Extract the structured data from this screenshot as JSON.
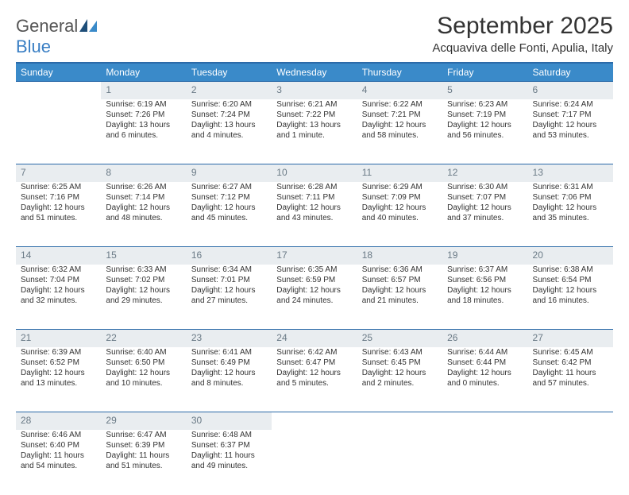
{
  "logo": {
    "part1": "General",
    "part2": "Blue"
  },
  "title": "September 2025",
  "location": "Acquaviva delle Fonti, Apulia, Italy",
  "colors": {
    "header_bg": "#3a8ac9",
    "header_text": "#ffffff",
    "daynum_bg": "#e9edf0",
    "daynum_text": "#6a7a86",
    "rule": "#2b6aa8",
    "logo_accent": "#3a7fc4",
    "body_text": "#333333"
  },
  "day_headers": [
    "Sunday",
    "Monday",
    "Tuesday",
    "Wednesday",
    "Thursday",
    "Friday",
    "Saturday"
  ],
  "weeks": [
    {
      "nums": [
        "",
        "1",
        "2",
        "3",
        "4",
        "5",
        "6"
      ],
      "cells": [
        null,
        {
          "sunrise": "Sunrise: 6:19 AM",
          "sunset": "Sunset: 7:26 PM",
          "daylight": "Daylight: 13 hours and 6 minutes."
        },
        {
          "sunrise": "Sunrise: 6:20 AM",
          "sunset": "Sunset: 7:24 PM",
          "daylight": "Daylight: 13 hours and 4 minutes."
        },
        {
          "sunrise": "Sunrise: 6:21 AM",
          "sunset": "Sunset: 7:22 PM",
          "daylight": "Daylight: 13 hours and 1 minute."
        },
        {
          "sunrise": "Sunrise: 6:22 AM",
          "sunset": "Sunset: 7:21 PM",
          "daylight": "Daylight: 12 hours and 58 minutes."
        },
        {
          "sunrise": "Sunrise: 6:23 AM",
          "sunset": "Sunset: 7:19 PM",
          "daylight": "Daylight: 12 hours and 56 minutes."
        },
        {
          "sunrise": "Sunrise: 6:24 AM",
          "sunset": "Sunset: 7:17 PM",
          "daylight": "Daylight: 12 hours and 53 minutes."
        }
      ]
    },
    {
      "nums": [
        "7",
        "8",
        "9",
        "10",
        "11",
        "12",
        "13"
      ],
      "cells": [
        {
          "sunrise": "Sunrise: 6:25 AM",
          "sunset": "Sunset: 7:16 PM",
          "daylight": "Daylight: 12 hours and 51 minutes."
        },
        {
          "sunrise": "Sunrise: 6:26 AM",
          "sunset": "Sunset: 7:14 PM",
          "daylight": "Daylight: 12 hours and 48 minutes."
        },
        {
          "sunrise": "Sunrise: 6:27 AM",
          "sunset": "Sunset: 7:12 PM",
          "daylight": "Daylight: 12 hours and 45 minutes."
        },
        {
          "sunrise": "Sunrise: 6:28 AM",
          "sunset": "Sunset: 7:11 PM",
          "daylight": "Daylight: 12 hours and 43 minutes."
        },
        {
          "sunrise": "Sunrise: 6:29 AM",
          "sunset": "Sunset: 7:09 PM",
          "daylight": "Daylight: 12 hours and 40 minutes."
        },
        {
          "sunrise": "Sunrise: 6:30 AM",
          "sunset": "Sunset: 7:07 PM",
          "daylight": "Daylight: 12 hours and 37 minutes."
        },
        {
          "sunrise": "Sunrise: 6:31 AM",
          "sunset": "Sunset: 7:06 PM",
          "daylight": "Daylight: 12 hours and 35 minutes."
        }
      ]
    },
    {
      "nums": [
        "14",
        "15",
        "16",
        "17",
        "18",
        "19",
        "20"
      ],
      "cells": [
        {
          "sunrise": "Sunrise: 6:32 AM",
          "sunset": "Sunset: 7:04 PM",
          "daylight": "Daylight: 12 hours and 32 minutes."
        },
        {
          "sunrise": "Sunrise: 6:33 AM",
          "sunset": "Sunset: 7:02 PM",
          "daylight": "Daylight: 12 hours and 29 minutes."
        },
        {
          "sunrise": "Sunrise: 6:34 AM",
          "sunset": "Sunset: 7:01 PM",
          "daylight": "Daylight: 12 hours and 27 minutes."
        },
        {
          "sunrise": "Sunrise: 6:35 AM",
          "sunset": "Sunset: 6:59 PM",
          "daylight": "Daylight: 12 hours and 24 minutes."
        },
        {
          "sunrise": "Sunrise: 6:36 AM",
          "sunset": "Sunset: 6:57 PM",
          "daylight": "Daylight: 12 hours and 21 minutes."
        },
        {
          "sunrise": "Sunrise: 6:37 AM",
          "sunset": "Sunset: 6:56 PM",
          "daylight": "Daylight: 12 hours and 18 minutes."
        },
        {
          "sunrise": "Sunrise: 6:38 AM",
          "sunset": "Sunset: 6:54 PM",
          "daylight": "Daylight: 12 hours and 16 minutes."
        }
      ]
    },
    {
      "nums": [
        "21",
        "22",
        "23",
        "24",
        "25",
        "26",
        "27"
      ],
      "cells": [
        {
          "sunrise": "Sunrise: 6:39 AM",
          "sunset": "Sunset: 6:52 PM",
          "daylight": "Daylight: 12 hours and 13 minutes."
        },
        {
          "sunrise": "Sunrise: 6:40 AM",
          "sunset": "Sunset: 6:50 PM",
          "daylight": "Daylight: 12 hours and 10 minutes."
        },
        {
          "sunrise": "Sunrise: 6:41 AM",
          "sunset": "Sunset: 6:49 PM",
          "daylight": "Daylight: 12 hours and 8 minutes."
        },
        {
          "sunrise": "Sunrise: 6:42 AM",
          "sunset": "Sunset: 6:47 PM",
          "daylight": "Daylight: 12 hours and 5 minutes."
        },
        {
          "sunrise": "Sunrise: 6:43 AM",
          "sunset": "Sunset: 6:45 PM",
          "daylight": "Daylight: 12 hours and 2 minutes."
        },
        {
          "sunrise": "Sunrise: 6:44 AM",
          "sunset": "Sunset: 6:44 PM",
          "daylight": "Daylight: 12 hours and 0 minutes."
        },
        {
          "sunrise": "Sunrise: 6:45 AM",
          "sunset": "Sunset: 6:42 PM",
          "daylight": "Daylight: 11 hours and 57 minutes."
        }
      ]
    },
    {
      "nums": [
        "28",
        "29",
        "30",
        "",
        "",
        "",
        ""
      ],
      "cells": [
        {
          "sunrise": "Sunrise: 6:46 AM",
          "sunset": "Sunset: 6:40 PM",
          "daylight": "Daylight: 11 hours and 54 minutes."
        },
        {
          "sunrise": "Sunrise: 6:47 AM",
          "sunset": "Sunset: 6:39 PM",
          "daylight": "Daylight: 11 hours and 51 minutes."
        },
        {
          "sunrise": "Sunrise: 6:48 AM",
          "sunset": "Sunset: 6:37 PM",
          "daylight": "Daylight: 11 hours and 49 minutes."
        },
        null,
        null,
        null,
        null
      ]
    }
  ]
}
